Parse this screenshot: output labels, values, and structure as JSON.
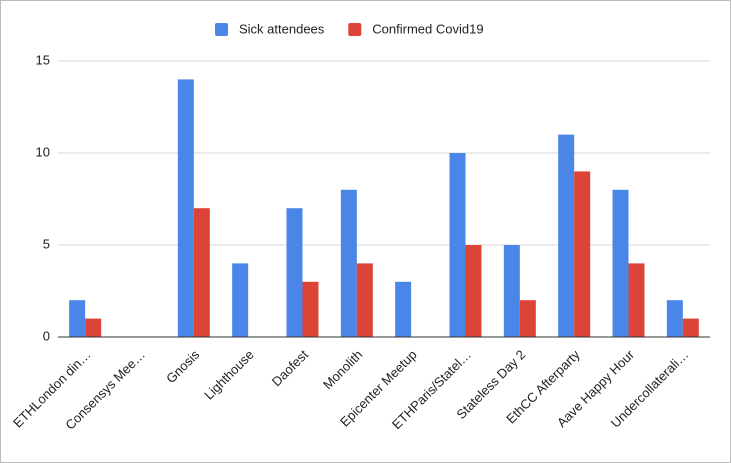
{
  "chart_data": {
    "type": "bar",
    "categories": [
      "ETHLondon din…",
      "Consensys Mee…",
      "Gnosis",
      "Lighthouse",
      "Daofest",
      "Monolith",
      "Epicenter Meetup",
      "ETHParis/Statel…",
      "Stateless Day 2",
      "EthCC Afterparty",
      "Aave Happy Hour",
      "Undercollaterali…"
    ],
    "series": [
      {
        "name": "Sick attendees",
        "color": "#4a86e8",
        "values": [
          2,
          0,
          14,
          4,
          7,
          8,
          3,
          10,
          5,
          11,
          8,
          2
        ]
      },
      {
        "name": "Confirmed Covid19",
        "color": "#db4437",
        "values": [
          1,
          0,
          7,
          0,
          3,
          4,
          0,
          5,
          2,
          9,
          4,
          1
        ]
      }
    ],
    "ylim": [
      0,
      15
    ],
    "yticks": [
      0,
      5,
      10,
      15
    ],
    "grid": true,
    "legend": "top"
  }
}
